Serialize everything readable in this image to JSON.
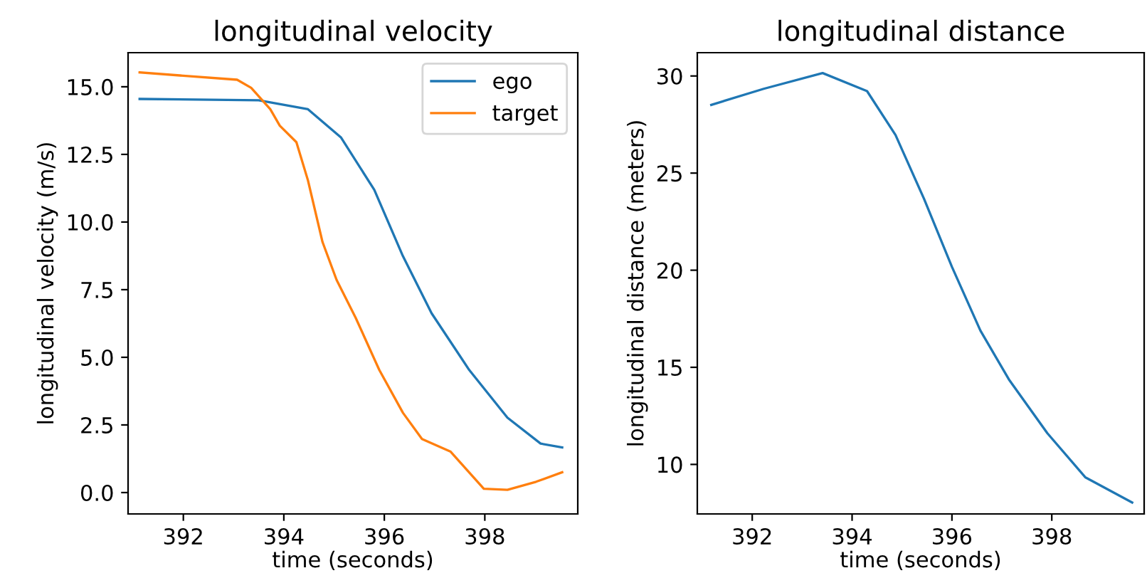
{
  "chart_data": [
    {
      "type": "line",
      "title": "longitudinal velocity",
      "xlabel": "time (seconds)",
      "ylabel": "longitudinal velocity (m/s)",
      "xlim": [
        390.9,
        399.85
      ],
      "ylim": [
        -0.79,
        16.26
      ],
      "xticks": [
        392,
        394,
        396,
        398
      ],
      "yticks": [
        {
          "value": 0,
          "label": "0.0"
        },
        {
          "value": 2.5,
          "label": "2.5"
        },
        {
          "value": 5,
          "label": "5.0"
        },
        {
          "value": 7.5,
          "label": "7.5"
        },
        {
          "value": 10,
          "label": "10.0"
        },
        {
          "value": 12.5,
          "label": "12.5"
        },
        {
          "value": 15,
          "label": "15.0"
        }
      ],
      "legend": "top right",
      "grid": false,
      "series": [
        {
          "name": "ego",
          "color": "#1f77b4",
          "x": [
            391.13,
            393.5,
            394.48,
            395.14,
            395.8,
            396.37,
            396.94,
            397.69,
            398.45,
            399.11,
            399.54
          ],
          "values": [
            14.55,
            14.5,
            14.17,
            13.12,
            11.19,
            8.74,
            6.63,
            4.53,
            2.77,
            1.81,
            1.67
          ]
        },
        {
          "name": "target",
          "color": "#ff7f0e",
          "x": [
            391.13,
            393.07,
            393.35,
            393.73,
            393.92,
            394.25,
            394.48,
            394.77,
            395.05,
            395.43,
            395.9,
            396.37,
            396.75,
            397.32,
            397.98,
            398.45,
            399.02,
            399.54
          ],
          "values": [
            15.53,
            15.26,
            14.96,
            14.17,
            13.56,
            12.95,
            11.54,
            9.26,
            7.86,
            6.46,
            4.53,
            2.95,
            1.98,
            1.51,
            0.14,
            0.1,
            0.4,
            0.75
          ]
        }
      ]
    },
    {
      "type": "line",
      "title": "longitudinal distance",
      "xlabel": "time (seconds)",
      "ylabel": "longitudinal distance (meters)",
      "xlim": [
        390.9,
        399.85
      ],
      "ylim": [
        7.45,
        31.2
      ],
      "xticks": [
        392,
        394,
        396,
        398
      ],
      "yticks": [
        10,
        15,
        20,
        25,
        30
      ],
      "grid": false,
      "series": [
        {
          "color": "#1f77b4",
          "x": [
            391.18,
            392.23,
            393.41,
            394.3,
            394.87,
            395.44,
            396.0,
            396.57,
            397.14,
            397.91,
            398.67,
            399.61
          ],
          "values": [
            28.51,
            29.34,
            30.15,
            29.22,
            26.96,
            23.68,
            20.17,
            16.89,
            14.38,
            11.61,
            9.34,
            8.04
          ]
        }
      ]
    }
  ]
}
